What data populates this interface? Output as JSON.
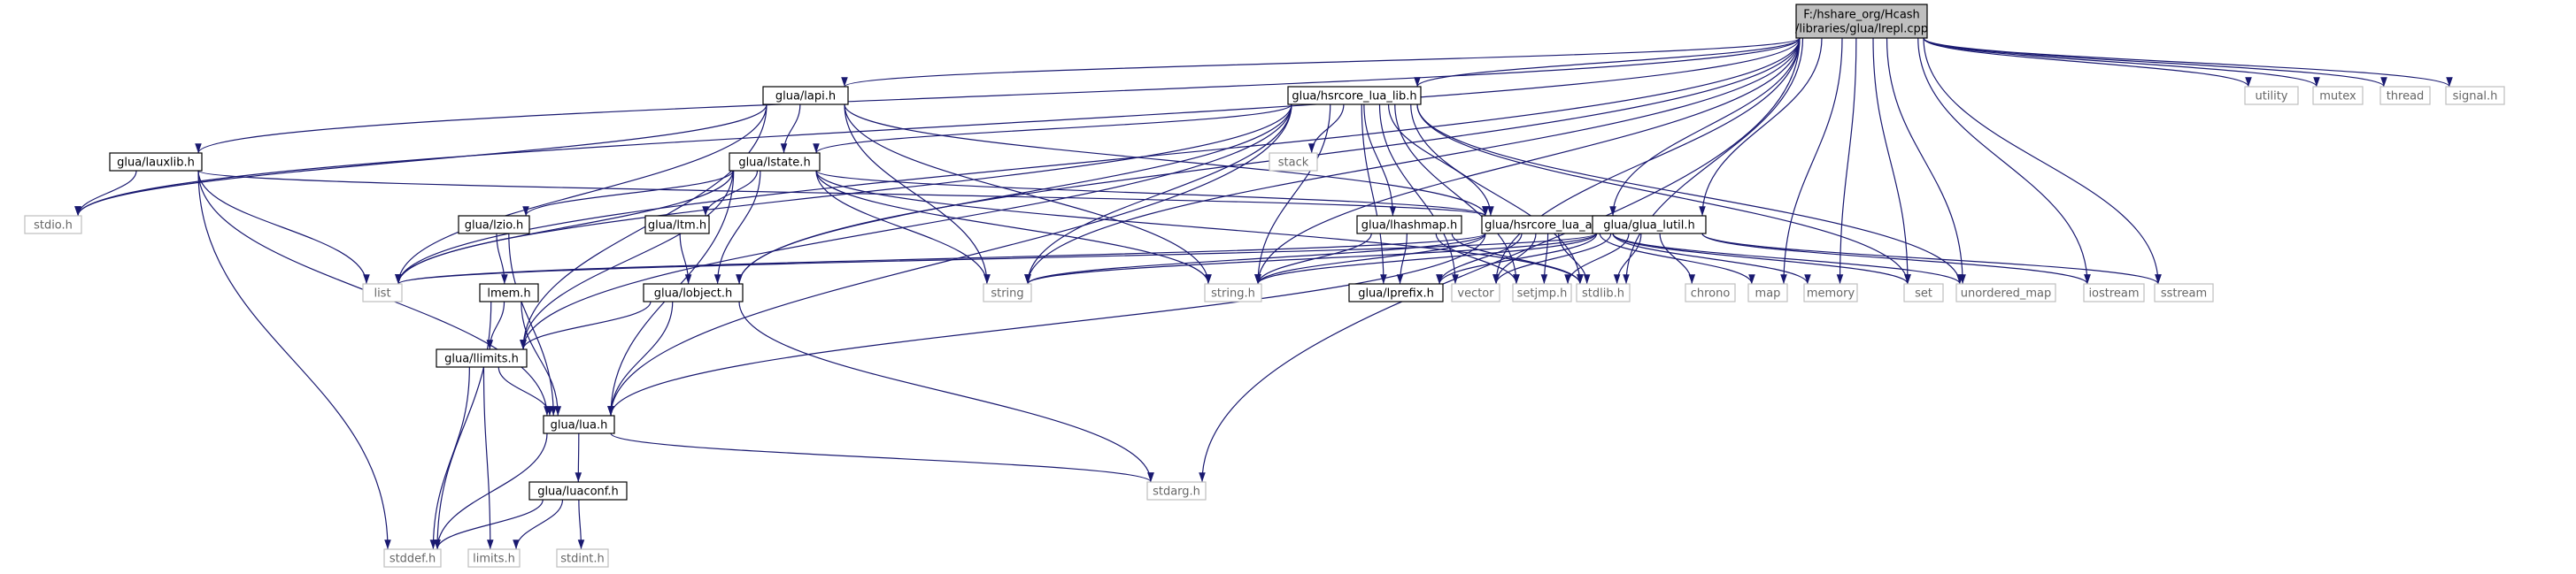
{
  "graph": {
    "root": "F:/hshare_org/Hcash/libraries/glua/lrepl.cpp",
    "colors": {
      "root_fill": "#bfbfbf",
      "node_fill": "#ffffff",
      "node_stroke": "#000000",
      "external_stroke": "#bfbfbf",
      "external_text": "#666666",
      "edge": "#191970"
    },
    "nodes": [
      {
        "id": "root",
        "lines": [
          "F:/hshare_org/Hcash",
          "/libraries/glua/lrepl.cpp"
        ],
        "kind": "root"
      },
      {
        "id": "lapi",
        "lines": [
          "glua/lapi.h"
        ],
        "kind": "header"
      },
      {
        "id": "hsrlib",
        "lines": [
          "glua/hsrcore_lua_lib.h"
        ],
        "kind": "header"
      },
      {
        "id": "lauxlib",
        "lines": [
          "glua/lauxlib.h"
        ],
        "kind": "header"
      },
      {
        "id": "lstate",
        "lines": [
          "glua/lstate.h"
        ],
        "kind": "header"
      },
      {
        "id": "stack",
        "lines": [
          "stack"
        ],
        "kind": "external"
      },
      {
        "id": "utility",
        "lines": [
          "utility"
        ],
        "kind": "external"
      },
      {
        "id": "mutex",
        "lines": [
          "mutex"
        ],
        "kind": "external"
      },
      {
        "id": "thread",
        "lines": [
          "thread"
        ],
        "kind": "external"
      },
      {
        "id": "signal",
        "lines": [
          "signal.h"
        ],
        "kind": "external"
      },
      {
        "id": "stdio",
        "lines": [
          "stdio.h"
        ],
        "kind": "external"
      },
      {
        "id": "lzio",
        "lines": [
          "glua/lzio.h"
        ],
        "kind": "header"
      },
      {
        "id": "ltm",
        "lines": [
          "glua/ltm.h"
        ],
        "kind": "header"
      },
      {
        "id": "lhashmap",
        "lines": [
          "glua/lhashmap.h"
        ],
        "kind": "header"
      },
      {
        "id": "hsrapi",
        "lines": [
          "glua/hsrcore_lua_api.h"
        ],
        "kind": "header"
      },
      {
        "id": "lutil",
        "lines": [
          "glua/glua_lutil.h"
        ],
        "kind": "header"
      },
      {
        "id": "list",
        "lines": [
          "list"
        ],
        "kind": "external"
      },
      {
        "id": "string",
        "lines": [
          "string"
        ],
        "kind": "external"
      },
      {
        "id": "stringh",
        "lines": [
          "string.h"
        ],
        "kind": "external"
      },
      {
        "id": "vector",
        "lines": [
          "vector"
        ],
        "kind": "external"
      },
      {
        "id": "setjmp",
        "lines": [
          "setjmp.h"
        ],
        "kind": "external"
      },
      {
        "id": "stdlib",
        "lines": [
          "stdlib.h"
        ],
        "kind": "external"
      },
      {
        "id": "chrono",
        "lines": [
          "chrono"
        ],
        "kind": "external"
      },
      {
        "id": "map",
        "lines": [
          "map"
        ],
        "kind": "external"
      },
      {
        "id": "memory",
        "lines": [
          "memory"
        ],
        "kind": "external"
      },
      {
        "id": "set",
        "lines": [
          "set"
        ],
        "kind": "external"
      },
      {
        "id": "umap",
        "lines": [
          "unordered_map"
        ],
        "kind": "external"
      },
      {
        "id": "iostream",
        "lines": [
          "iostream"
        ],
        "kind": "external"
      },
      {
        "id": "sstream",
        "lines": [
          "sstream"
        ],
        "kind": "external"
      },
      {
        "id": "lprefix",
        "lines": [
          "glua/lprefix.h"
        ],
        "kind": "header"
      },
      {
        "id": "lmem",
        "lines": [
          "lmem.h"
        ],
        "kind": "header"
      },
      {
        "id": "lobject",
        "lines": [
          "glua/lobject.h"
        ],
        "kind": "header"
      },
      {
        "id": "llimits",
        "lines": [
          "glua/llimits.h"
        ],
        "kind": "header"
      },
      {
        "id": "lua",
        "lines": [
          "glua/lua.h"
        ],
        "kind": "header"
      },
      {
        "id": "luaconf",
        "lines": [
          "glua/luaconf.h"
        ],
        "kind": "header"
      },
      {
        "id": "stdarg",
        "lines": [
          "stdarg.h"
        ],
        "kind": "external"
      },
      {
        "id": "stddef",
        "lines": [
          "stddef.h"
        ],
        "kind": "external"
      },
      {
        "id": "limits",
        "lines": [
          "limits.h"
        ],
        "kind": "external"
      },
      {
        "id": "stdint",
        "lines": [
          "stdint.h"
        ],
        "kind": "external"
      }
    ],
    "edges": [
      [
        "root",
        "lapi"
      ],
      [
        "root",
        "hsrlib"
      ],
      [
        "root",
        "lauxlib"
      ],
      [
        "root",
        "utility"
      ],
      [
        "root",
        "mutex"
      ],
      [
        "root",
        "thread"
      ],
      [
        "root",
        "signal"
      ],
      [
        "root",
        "stdio"
      ],
      [
        "root",
        "list"
      ],
      [
        "root",
        "string"
      ],
      [
        "root",
        "stringh"
      ],
      [
        "root",
        "hsrapi"
      ],
      [
        "root",
        "lutil"
      ],
      [
        "root",
        "lobject"
      ],
      [
        "root",
        "map"
      ],
      [
        "root",
        "memory"
      ],
      [
        "root",
        "set"
      ],
      [
        "root",
        "umap"
      ],
      [
        "root",
        "iostream"
      ],
      [
        "root",
        "sstream"
      ],
      [
        "root",
        "stdlib"
      ],
      [
        "root",
        "stdarg"
      ],
      [
        "root",
        "vector"
      ],
      [
        "lapi",
        "lstate"
      ],
      [
        "lapi",
        "list"
      ],
      [
        "lapi",
        "string"
      ],
      [
        "lapi",
        "stringh"
      ],
      [
        "lapi",
        "hsrapi"
      ],
      [
        "lapi",
        "stdio"
      ],
      [
        "lapi",
        "llimits"
      ],
      [
        "hsrlib",
        "lstate"
      ],
      [
        "hsrlib",
        "stack"
      ],
      [
        "hsrlib",
        "lhashmap"
      ],
      [
        "hsrlib",
        "hsrapi"
      ],
      [
        "hsrlib",
        "list"
      ],
      [
        "hsrlib",
        "string"
      ],
      [
        "hsrlib",
        "stringh"
      ],
      [
        "hsrlib",
        "lprefix"
      ],
      [
        "hsrlib",
        "lobject"
      ],
      [
        "hsrlib",
        "lua"
      ],
      [
        "hsrlib",
        "setjmp"
      ],
      [
        "hsrlib",
        "stdlib"
      ],
      [
        "hsrlib",
        "set"
      ],
      [
        "hsrlib",
        "umap"
      ],
      [
        "hsrlib",
        "vector"
      ],
      [
        "hsrlib",
        "llimits"
      ],
      [
        "lauxlib",
        "stdio"
      ],
      [
        "lauxlib",
        "list"
      ],
      [
        "lauxlib",
        "hsrapi"
      ],
      [
        "lauxlib",
        "lua"
      ],
      [
        "lauxlib",
        "stddef"
      ],
      [
        "lstate",
        "lzio"
      ],
      [
        "lstate",
        "ltm"
      ],
      [
        "lstate",
        "lobject"
      ],
      [
        "lstate",
        "hsrapi"
      ],
      [
        "lstate",
        "list"
      ],
      [
        "lstate",
        "string"
      ],
      [
        "lstate",
        "stringh"
      ],
      [
        "lstate",
        "lua"
      ],
      [
        "lstate",
        "llimits"
      ],
      [
        "lstate",
        "stdlib"
      ],
      [
        "lzio",
        "lmem"
      ],
      [
        "lzio",
        "lua"
      ],
      [
        "ltm",
        "lobject"
      ],
      [
        "lhashmap",
        "lprefix"
      ],
      [
        "lhashmap",
        "setjmp"
      ],
      [
        "lhashmap",
        "stdlib"
      ],
      [
        "lhashmap",
        "stringh"
      ],
      [
        "hsrapi",
        "list"
      ],
      [
        "hsrapi",
        "string"
      ],
      [
        "hsrapi",
        "stringh"
      ],
      [
        "hsrapi",
        "vector"
      ],
      [
        "hsrapi",
        "setjmp"
      ],
      [
        "hsrapi",
        "stdlib"
      ],
      [
        "hsrapi",
        "map"
      ],
      [
        "hsrapi",
        "memory"
      ],
      [
        "hsrapi",
        "set"
      ],
      [
        "hsrapi",
        "umap"
      ],
      [
        "hsrapi",
        "lprefix"
      ],
      [
        "hsrapi",
        "lua"
      ],
      [
        "lutil",
        "list"
      ],
      [
        "lutil",
        "string"
      ],
      [
        "lutil",
        "stringh"
      ],
      [
        "lutil",
        "vector"
      ],
      [
        "lutil",
        "setjmp"
      ],
      [
        "lutil",
        "stdlib"
      ],
      [
        "lutil",
        "chrono"
      ],
      [
        "lutil",
        "iostream"
      ],
      [
        "lutil",
        "sstream"
      ],
      [
        "lutil",
        "lprefix"
      ],
      [
        "lmem",
        "llimits"
      ],
      [
        "lmem",
        "lua"
      ],
      [
        "lmem",
        "stddef"
      ],
      [
        "lobject",
        "llimits"
      ],
      [
        "lobject",
        "lua"
      ],
      [
        "lobject",
        "stdarg"
      ],
      [
        "llimits",
        "lua"
      ],
      [
        "llimits",
        "stddef"
      ],
      [
        "llimits",
        "limits"
      ],
      [
        "lua",
        "luaconf"
      ],
      [
        "lua",
        "stdarg"
      ],
      [
        "lua",
        "stddef"
      ],
      [
        "luaconf",
        "stddef"
      ],
      [
        "luaconf",
        "limits"
      ],
      [
        "luaconf",
        "stdint"
      ]
    ]
  }
}
